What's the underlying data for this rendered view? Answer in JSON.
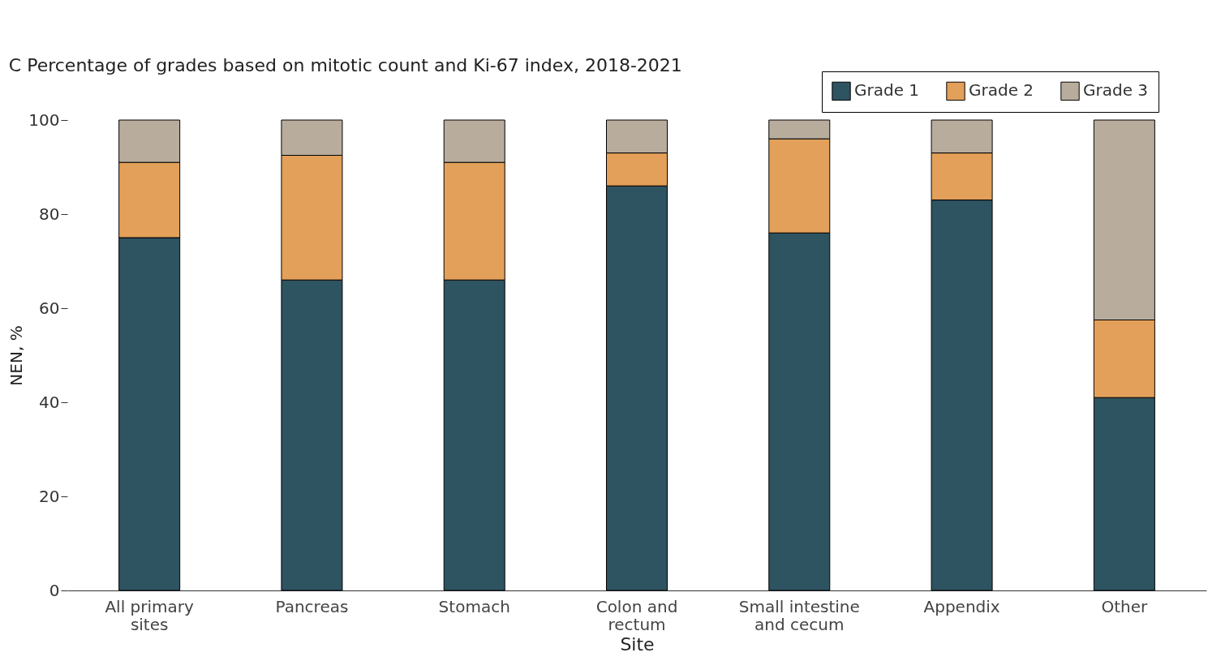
{
  "chart_data": {
    "type": "bar",
    "stacked": true,
    "title": "Percentage of grades based on mitotic count and Ki-67 index, 2018-2021",
    "annotations": [
      "C"
    ],
    "xlabel": "Site",
    "ylabel": "NEN, %",
    "categories": [
      "All primary sites",
      "Pancreas",
      "Stomach",
      "Colon and rectum",
      "Small intestine and cecum",
      "Appendix",
      "Other"
    ],
    "series": [
      {
        "name": "Grade 1",
        "color": "#2e5361",
        "values": [
          75,
          66,
          66,
          86,
          76,
          83,
          41
        ]
      },
      {
        "name": "Grade 2",
        "color": "#e3a05a",
        "values": [
          16,
          26.5,
          25,
          7,
          20,
          10,
          16.5
        ]
      },
      {
        "name": "Grade 3",
        "color": "#b8ad9d",
        "values": [
          9,
          7.5,
          9,
          7,
          4,
          7,
          42.5
        ]
      }
    ],
    "ylim": [
      0,
      100
    ],
    "yticks": [
      0,
      20,
      40,
      60,
      80,
      100
    ],
    "grid": false,
    "legend": "top right"
  }
}
